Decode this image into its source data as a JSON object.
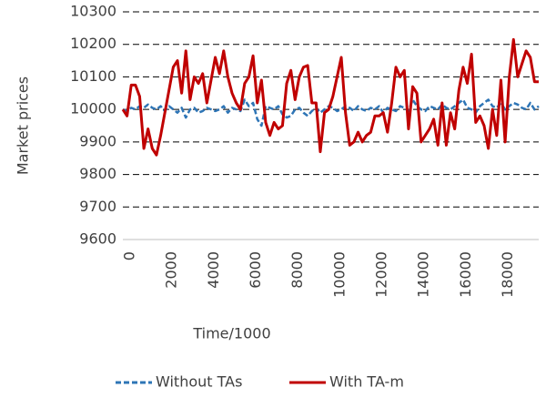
{
  "chart_data": {
    "type": "line",
    "xlabel": "Time/1000",
    "ylabel": "Market prices",
    "xlim": [
      0,
      19800
    ],
    "ylim": [
      9600,
      10300
    ],
    "xticks": [
      0,
      2000,
      4000,
      6000,
      8000,
      10000,
      12000,
      14000,
      16000,
      18000
    ],
    "yticks": [
      9600,
      9700,
      9800,
      9900,
      10000,
      10100,
      10200,
      10300
    ],
    "grid": true,
    "legend": "bottom",
    "x": [
      0,
      200,
      400,
      600,
      800,
      1000,
      1200,
      1400,
      1600,
      1800,
      2000,
      2200,
      2400,
      2600,
      2800,
      3000,
      3200,
      3400,
      3600,
      3800,
      4000,
      4200,
      4400,
      4600,
      4800,
      5000,
      5200,
      5400,
      5600,
      5800,
      6000,
      6200,
      6400,
      6600,
      6800,
      7000,
      7200,
      7400,
      7600,
      7800,
      8000,
      8200,
      8400,
      8600,
      8800,
      9000,
      9200,
      9400,
      9600,
      9800,
      10000,
      10200,
      10400,
      10600,
      10800,
      11000,
      11200,
      11400,
      11600,
      11800,
      12000,
      12200,
      12400,
      12600,
      12800,
      13000,
      13200,
      13400,
      13600,
      13800,
      14000,
      14200,
      14400,
      14600,
      14800,
      15000,
      15200,
      15400,
      15600,
      15800,
      16000,
      16200,
      16400,
      16600,
      16800,
      17000,
      17200,
      17400,
      17600,
      17800,
      18000,
      18200,
      18400,
      18600,
      18800,
      19000,
      19200,
      19400,
      19600,
      19800
    ],
    "series": [
      {
        "name": "Without TAs",
        "color": "#2e75b6",
        "dashed": true,
        "values": [
          10000,
          9995,
          10005,
          10000,
          10010,
          10005,
          10015,
          10005,
          10000,
          10010,
          9995,
          10010,
          10000,
          9990,
          10005,
          9975,
          10000,
          10005,
          9990,
          9995,
          10005,
          10000,
          9995,
          10000,
          10010,
          9990,
          10005,
          10000,
          9995,
          10030,
          10010,
          10020,
          9970,
          9950,
          10010,
          10005,
          10000,
          10010,
          9985,
          9975,
          9980,
          10000,
          10005,
          9990,
          9980,
          9995,
          10005,
          9990,
          10000,
          10010,
          10005,
          9995,
          10000,
          10010,
          10005,
          9995,
          10010,
          10000,
          9995,
          10005,
          10000,
          10010,
          9990,
          10005,
          10000,
          9995,
          10010,
          10005,
          9995,
          10030,
          10010,
          10000,
          9995,
          10010,
          10005,
          10000,
          10015,
          10005,
          10000,
          10010,
          10020,
          10030,
          10005,
          10000,
          9990,
          10010,
          10020,
          10030,
          10010,
          10005,
          10020,
          10000,
          10010,
          10020,
          10015,
          10005,
          10000,
          10020,
          10000,
          10010
        ]
      },
      {
        "name": "With TA-m",
        "color": "#c00000",
        "dashed": false,
        "values": [
          10000,
          9980,
          10075,
          10075,
          10040,
          9880,
          9940,
          9880,
          9860,
          9920,
          9990,
          10060,
          10130,
          10150,
          10050,
          10180,
          10030,
          10100,
          10080,
          10110,
          10020,
          10090,
          10160,
          10110,
          10180,
          10100,
          10050,
          10020,
          10000,
          10080,
          10100,
          10165,
          10020,
          10090,
          9960,
          9920,
          9960,
          9940,
          9950,
          10080,
          10120,
          10030,
          10100,
          10130,
          10135,
          10020,
          10020,
          9870,
          9990,
          10000,
          10040,
          10100,
          10160,
          9990,
          9890,
          9900,
          9930,
          9900,
          9920,
          9930,
          9980,
          9980,
          9990,
          9930,
          10020,
          10130,
          10100,
          10120,
          9940,
          10070,
          10050,
          9900,
          9920,
          9940,
          9970,
          9890,
          10020,
          9890,
          9990,
          9940,
          10060,
          10130,
          10080,
          10170,
          9960,
          9980,
          9950,
          9880,
          10000,
          9920,
          10090,
          9900,
          10100,
          10215,
          10100,
          10140,
          10180,
          10160,
          10085,
          10085
        ]
      }
    ]
  }
}
